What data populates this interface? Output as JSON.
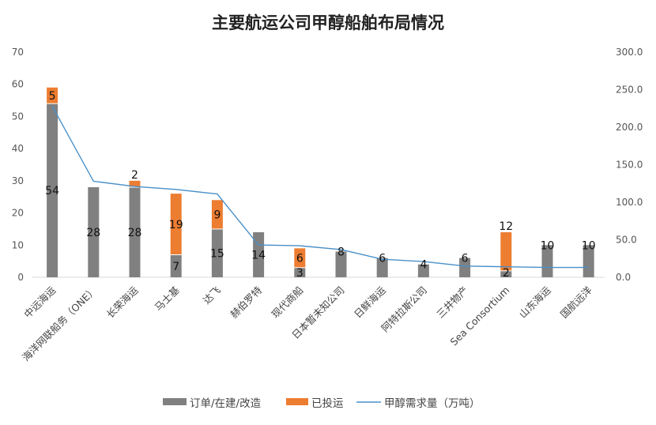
{
  "chart_data": {
    "type": "bar",
    "stacked": true,
    "title": "主要航运公司甲醇船舶布局情况",
    "categories": [
      "中远海运",
      "海洋网联船务（ONE）",
      "长荣海运",
      "马士基",
      "达飞",
      "赫伯罗特",
      "现代商船",
      "日本暂未知公司",
      "日鲜海运",
      "阿特拉斯公司",
      "三井物产",
      "Sea Consortium",
      "山东海运",
      "国航远洋"
    ],
    "series": [
      {
        "name": "订单/在建/改造",
        "color": "#808080",
        "axis": "left",
        "values": [
          54,
          28,
          28,
          7,
          15,
          14,
          3,
          8,
          6,
          4,
          6,
          2,
          10,
          10
        ]
      },
      {
        "name": "已投运",
        "color": "#ED7D31",
        "axis": "left",
        "values": [
          5,
          0,
          2,
          19,
          9,
          0,
          6,
          0,
          0,
          0,
          0,
          12,
          0,
          0
        ]
      },
      {
        "name": "甲醇需求量（万吨）",
        "color": "#4A90C8",
        "axis": "right",
        "type": "line",
        "values": [
          228,
          128,
          121,
          117,
          111,
          43,
          42,
          37,
          24,
          21,
          15,
          14,
          13,
          13
        ]
      }
    ],
    "data_labels": {
      "gray": [
        "54",
        "28",
        "28",
        "7",
        "15",
        "14",
        "3",
        "8",
        "6",
        "4",
        "6",
        "2",
        "10",
        "10"
      ],
      "orange": [
        "5",
        "",
        "2",
        "19",
        "9",
        "",
        "6",
        "",
        "",
        "",
        "",
        "12",
        "",
        ""
      ]
    },
    "ylim_left": [
      0,
      70
    ],
    "left_ticks": [
      "0",
      "10",
      "20",
      "30",
      "40",
      "50",
      "60",
      "70"
    ],
    "ylim_right": [
      0,
      300
    ],
    "right_ticks": [
      "0.0",
      "50.0",
      "100.0",
      "150.0",
      "200.0",
      "250.0",
      "300.0"
    ],
    "legend": {
      "position": "bottom",
      "items": [
        "订单/在建/改造",
        "已投运",
        "甲醇需求量（万吨）"
      ]
    }
  }
}
